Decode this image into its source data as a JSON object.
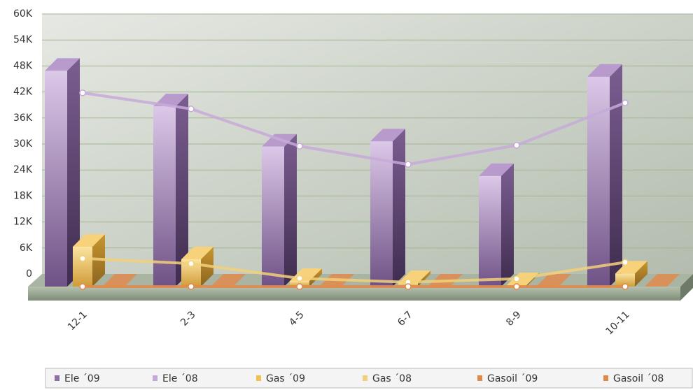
{
  "chart_data": {
    "type": "bar3d",
    "categories": [
      "12-1",
      "2-3",
      "4-5",
      "6-7",
      "8-9",
      "10-11"
    ],
    "series": [
      {
        "name": "Ele ´09",
        "kind": "column",
        "color": "#8e6fa6",
        "values": [
          49800,
          41600,
          32300,
          33500,
          25500,
          48400
        ]
      },
      {
        "name": "Ele ´08",
        "kind": "line",
        "color": "#c7a9d9",
        "values": [
          44700,
          41000,
          32400,
          28200,
          32600,
          42400
        ]
      },
      {
        "name": "Gas ´09",
        "kind": "column",
        "color": "#f2c14e",
        "values": [
          9200,
          6300,
          1300,
          800,
          300,
          3000
        ]
      },
      {
        "name": "Gas ´08",
        "kind": "line",
        "color": "#f2d07a",
        "values": [
          6500,
          5300,
          1900,
          1000,
          1800,
          5600
        ]
      },
      {
        "name": "Gasoil ´09",
        "kind": "column",
        "color": "#e4884a",
        "values": [
          0,
          0,
          0,
          0,
          0,
          0
        ]
      },
      {
        "name": "Gasoil ´08",
        "kind": "line",
        "color": "#e4884a",
        "values": [
          0,
          0,
          0,
          0,
          0,
          0
        ]
      }
    ],
    "ylim": [
      0,
      60000
    ],
    "yticks": [
      0,
      {
        "value": 6000,
        "label": "6K"
      },
      {
        "value": 12000,
        "label": "12K"
      },
      {
        "value": 18000,
        "label": "18K"
      },
      {
        "value": 24000,
        "label": "24K"
      },
      {
        "value": 30000,
        "label": "30K"
      },
      {
        "value": 36000,
        "label": "36K"
      },
      {
        "value": 42000,
        "label": "42K"
      },
      {
        "value": 48000,
        "label": "48K"
      },
      {
        "value": 54000,
        "label": "54K"
      },
      {
        "value": 60000,
        "label": "60K"
      }
    ],
    "grid": true,
    "legend": "bottom"
  }
}
